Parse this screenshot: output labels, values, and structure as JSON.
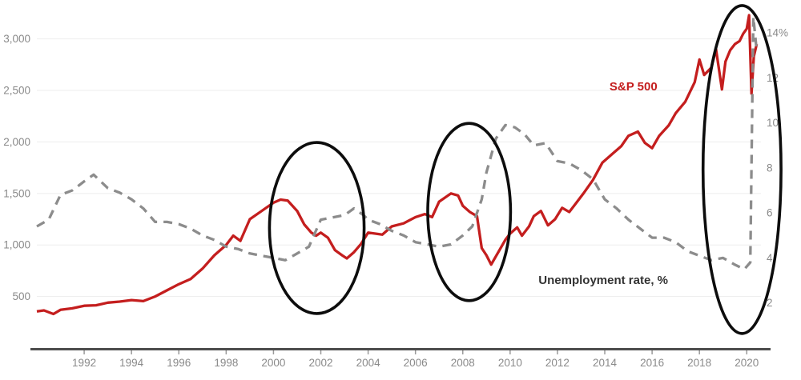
{
  "chart_data": {
    "type": "line",
    "title": "",
    "xlabel": "",
    "ylabel_left": "",
    "ylabel_right": "",
    "grid": true,
    "legend_position": "inline-annotations",
    "x_axis": {
      "min": 1990,
      "max": 2020.6,
      "ticks": [
        1992,
        1994,
        1996,
        1998,
        2000,
        2002,
        2004,
        2006,
        2008,
        2010,
        2012,
        2014,
        2016,
        2018,
        2020
      ],
      "tick_labels": [
        "1992",
        "1994",
        "1996",
        "1998",
        "2000",
        "2002",
        "2004",
        "2006",
        "2008",
        "2010",
        "2012",
        "2014",
        "2016",
        "2018",
        "2020"
      ]
    },
    "y_left": {
      "min": 0,
      "max": 3300,
      "ticks": [
        500,
        1000,
        1500,
        2000,
        2500,
        3000
      ],
      "tick_labels": [
        "500",
        "1,000",
        "1,500",
        "2,000",
        "2,500",
        "3,000"
      ]
    },
    "y_right": {
      "min": 0,
      "max": 15.1,
      "ticks": [
        2,
        4,
        6,
        8,
        10,
        12,
        14
      ],
      "tick_labels": [
        "2",
        "4",
        "6",
        "8",
        "10",
        "12",
        "14%"
      ]
    },
    "colors": {
      "sp500": "#c41e1e",
      "unemployment": "#8c8c8c",
      "ellipse": "#0d0d0d",
      "axis_line": "#4d4d4d",
      "grid_line": "#ededed",
      "tick_text": "#8a8a8a",
      "unemployment_label": "#333333"
    },
    "series": [
      {
        "name": "S&P 500",
        "axis": "left",
        "style": "solid",
        "color_key": "sp500",
        "points": [
          [
            1990.0,
            355
          ],
          [
            1990.3,
            365
          ],
          [
            1990.7,
            330
          ],
          [
            1991.0,
            370
          ],
          [
            1991.5,
            385
          ],
          [
            1992.0,
            410
          ],
          [
            1992.5,
            415
          ],
          [
            1993.0,
            440
          ],
          [
            1993.5,
            450
          ],
          [
            1994.0,
            465
          ],
          [
            1994.5,
            455
          ],
          [
            1995.0,
            500
          ],
          [
            1995.5,
            560
          ],
          [
            1996.0,
            620
          ],
          [
            1996.5,
            670
          ],
          [
            1997.0,
            770
          ],
          [
            1997.5,
            900
          ],
          [
            1998.0,
            1000
          ],
          [
            1998.3,
            1090
          ],
          [
            1998.6,
            1040
          ],
          [
            1999.0,
            1250
          ],
          [
            1999.5,
            1330
          ],
          [
            2000.0,
            1410
          ],
          [
            2000.3,
            1440
          ],
          [
            2000.6,
            1430
          ],
          [
            2001.0,
            1330
          ],
          [
            2001.3,
            1200
          ],
          [
            2001.6,
            1120
          ],
          [
            2001.8,
            1090
          ],
          [
            2002.0,
            1120
          ],
          [
            2002.3,
            1070
          ],
          [
            2002.6,
            950
          ],
          [
            2002.9,
            900
          ],
          [
            2003.1,
            870
          ],
          [
            2003.4,
            930
          ],
          [
            2003.7,
            1010
          ],
          [
            2004.0,
            1120
          ],
          [
            2004.3,
            1110
          ],
          [
            2004.6,
            1100
          ],
          [
            2005.0,
            1180
          ],
          [
            2005.5,
            1210
          ],
          [
            2006.0,
            1270
          ],
          [
            2006.4,
            1300
          ],
          [
            2006.7,
            1270
          ],
          [
            2007.0,
            1420
          ],
          [
            2007.5,
            1500
          ],
          [
            2007.8,
            1480
          ],
          [
            2008.0,
            1380
          ],
          [
            2008.3,
            1320
          ],
          [
            2008.6,
            1280
          ],
          [
            2008.8,
            970
          ],
          [
            2009.0,
            900
          ],
          [
            2009.2,
            810
          ],
          [
            2009.5,
            930
          ],
          [
            2009.8,
            1050
          ],
          [
            2010.0,
            1110
          ],
          [
            2010.3,
            1170
          ],
          [
            2010.5,
            1090
          ],
          [
            2010.8,
            1180
          ],
          [
            2011.0,
            1280
          ],
          [
            2011.3,
            1330
          ],
          [
            2011.6,
            1190
          ],
          [
            2011.9,
            1250
          ],
          [
            2012.2,
            1360
          ],
          [
            2012.5,
            1320
          ],
          [
            2012.8,
            1410
          ],
          [
            2013.1,
            1500
          ],
          [
            2013.5,
            1630
          ],
          [
            2013.9,
            1800
          ],
          [
            2014.3,
            1880
          ],
          [
            2014.7,
            1960
          ],
          [
            2015.0,
            2060
          ],
          [
            2015.4,
            2100
          ],
          [
            2015.7,
            1990
          ],
          [
            2016.0,
            1940
          ],
          [
            2016.3,
            2060
          ],
          [
            2016.7,
            2160
          ],
          [
            2017.0,
            2280
          ],
          [
            2017.4,
            2390
          ],
          [
            2017.8,
            2580
          ],
          [
            2018.0,
            2800
          ],
          [
            2018.2,
            2650
          ],
          [
            2018.5,
            2720
          ],
          [
            2018.7,
            2900
          ],
          [
            2018.95,
            2510
          ],
          [
            2019.1,
            2780
          ],
          [
            2019.3,
            2890
          ],
          [
            2019.5,
            2950
          ],
          [
            2019.7,
            2980
          ],
          [
            2019.85,
            3050
          ],
          [
            2020.0,
            3100
          ],
          [
            2020.1,
            3230
          ],
          [
            2020.2,
            2470
          ],
          [
            2020.3,
            2830
          ],
          [
            2020.42,
            2950
          ]
        ]
      },
      {
        "name": "Unemployment rate, %",
        "axis": "right",
        "style": "dashed",
        "color_key": "unemployment",
        "points": [
          [
            1990.0,
            5.4
          ],
          [
            1990.5,
            5.7
          ],
          [
            1991.0,
            6.8
          ],
          [
            1991.5,
            7.0
          ],
          [
            1992.0,
            7.4
          ],
          [
            1992.4,
            7.7
          ],
          [
            1993.0,
            7.1
          ],
          [
            1993.5,
            6.9
          ],
          [
            1994.0,
            6.6
          ],
          [
            1994.5,
            6.2
          ],
          [
            1995.0,
            5.6
          ],
          [
            1995.5,
            5.6
          ],
          [
            1996.0,
            5.5
          ],
          [
            1996.5,
            5.3
          ],
          [
            1997.0,
            5.0
          ],
          [
            1997.5,
            4.8
          ],
          [
            1998.0,
            4.5
          ],
          [
            1998.5,
            4.4
          ],
          [
            1999.0,
            4.2
          ],
          [
            1999.5,
            4.1
          ],
          [
            2000.0,
            4.0
          ],
          [
            2000.5,
            3.9
          ],
          [
            2001.0,
            4.2
          ],
          [
            2001.5,
            4.5
          ],
          [
            2002.0,
            5.7
          ],
          [
            2002.5,
            5.8
          ],
          [
            2003.0,
            5.9
          ],
          [
            2003.4,
            6.2
          ],
          [
            2003.8,
            5.9
          ],
          [
            2004.0,
            5.7
          ],
          [
            2004.5,
            5.5
          ],
          [
            2005.0,
            5.2
          ],
          [
            2005.5,
            5.0
          ],
          [
            2006.0,
            4.7
          ],
          [
            2006.5,
            4.6
          ],
          [
            2007.0,
            4.5
          ],
          [
            2007.5,
            4.6
          ],
          [
            2008.0,
            5.0
          ],
          [
            2008.4,
            5.4
          ],
          [
            2008.8,
            6.6
          ],
          [
            2009.0,
            7.8
          ],
          [
            2009.4,
            9.3
          ],
          [
            2009.8,
            9.9
          ],
          [
            2010.2,
            9.8
          ],
          [
            2010.6,
            9.5
          ],
          [
            2011.0,
            9.0
          ],
          [
            2011.5,
            9.1
          ],
          [
            2012.0,
            8.3
          ],
          [
            2012.5,
            8.2
          ],
          [
            2013.0,
            7.9
          ],
          [
            2013.5,
            7.5
          ],
          [
            2014.0,
            6.6
          ],
          [
            2014.5,
            6.2
          ],
          [
            2015.0,
            5.7
          ],
          [
            2015.5,
            5.3
          ],
          [
            2016.0,
            4.9
          ],
          [
            2016.5,
            4.9
          ],
          [
            2017.0,
            4.7
          ],
          [
            2017.5,
            4.3
          ],
          [
            2018.0,
            4.1
          ],
          [
            2018.5,
            3.9
          ],
          [
            2019.0,
            4.0
          ],
          [
            2019.5,
            3.7
          ],
          [
            2019.9,
            3.5
          ],
          [
            2020.15,
            3.8
          ],
          [
            2020.28,
            14.7
          ],
          [
            2020.42,
            13.2
          ]
        ]
      }
    ],
    "annotations": {
      "ellipses": [
        {
          "center_year": 2001.83,
          "center_value": 1165,
          "rx_years": 2.0,
          "ry_values": 830
        },
        {
          "center_year": 2008.27,
          "center_value": 1320,
          "rx_years": 1.75,
          "ry_values": 860
        },
        {
          "center_year": 2019.8,
          "center_value": 1732,
          "rx_years": 1.65,
          "ry_values": 1592
        }
      ],
      "labels": [
        {
          "id": "sp500-label",
          "text": "S&P 500",
          "year": 2014.2,
          "value": 2500,
          "color_key": "sp500",
          "weight": "bold",
          "size": 15
        },
        {
          "id": "unemployment-label",
          "text": "Unemployment rate, %",
          "year": 2011.2,
          "value": 620,
          "color_key": "unemployment_label",
          "weight": "bold",
          "size": 15
        }
      ]
    }
  }
}
